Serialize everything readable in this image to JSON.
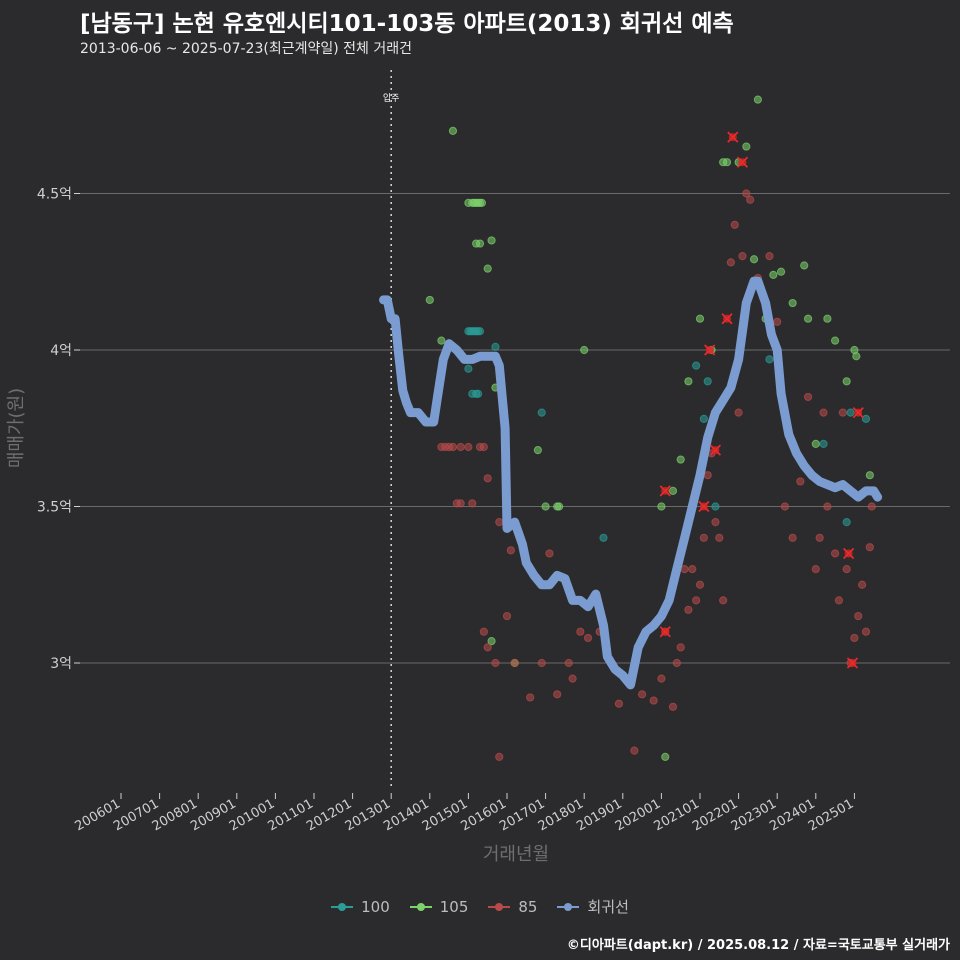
{
  "title": "[남동구] 논현 유호엔시티101-103동 아파트(2013) 회귀선 예측",
  "subtitle": "2013-06-06 ~ 2025-07-23(최근계약일) 전체 거래건",
  "credit": "©디아파트(dapt.kr) / 2025.08.12 / 자료=국토교통부 실거래가",
  "chart_data": {
    "type": "scatter",
    "xlabel": "거래년월",
    "ylabel": "매매가(원)",
    "x_ticks": [
      "200601",
      "200701",
      "200801",
      "200901",
      "201001",
      "201101",
      "201201",
      "201301",
      "201401",
      "201501",
      "201601",
      "201701",
      "201801",
      "201901",
      "202001",
      "202101",
      "202201",
      "202301",
      "202401",
      "202501"
    ],
    "y_ticks": [
      {
        "value": 3.0,
        "label": "3억"
      },
      {
        "value": 3.5,
        "label": "3.5억"
      },
      {
        "value": 4.0,
        "label": "4억"
      },
      {
        "value": 4.5,
        "label": "4.5억"
      }
    ],
    "ylim": [
      2.6,
      4.85
    ],
    "xlim": [
      2006.0,
      2025.7
    ],
    "annotation": {
      "x": 2013.0,
      "label": "입주"
    },
    "colors": {
      "100": "#2a9d96",
      "105": "#7cd16b",
      "85": "#b84a4a",
      "회귀선": "#7b9cd0"
    },
    "series": [
      {
        "name": "100",
        "points": [
          [
            2015.0,
            4.06
          ],
          [
            2015.05,
            4.06
          ],
          [
            2015.1,
            4.06
          ],
          [
            2015.15,
            4.06
          ],
          [
            2015.2,
            4.06
          ],
          [
            2015.25,
            4.06
          ],
          [
            2015.3,
            4.06
          ],
          [
            2015.0,
            3.94
          ],
          [
            2015.1,
            3.86
          ],
          [
            2015.2,
            3.86
          ],
          [
            2015.25,
            3.86
          ],
          [
            2015.7,
            4.01
          ],
          [
            2016.9,
            3.8
          ],
          [
            2018.5,
            3.4
          ],
          [
            2020.9,
            3.95
          ],
          [
            2021.1,
            3.78
          ],
          [
            2021.2,
            3.9
          ],
          [
            2021.4,
            3.5
          ],
          [
            2022.8,
            3.97
          ],
          [
            2024.2,
            3.7
          ],
          [
            2024.8,
            3.45
          ],
          [
            2024.9,
            3.8
          ],
          [
            2025.3,
            3.78
          ]
        ]
      },
      {
        "name": "105",
        "points": [
          [
            2015.0,
            4.47
          ],
          [
            2015.1,
            4.47
          ],
          [
            2015.15,
            4.47
          ],
          [
            2015.2,
            4.47
          ],
          [
            2015.25,
            4.47
          ],
          [
            2015.3,
            4.47
          ],
          [
            2015.35,
            4.47
          ],
          [
            2014.6,
            4.7
          ],
          [
            2014.0,
            4.16
          ],
          [
            2014.3,
            4.03
          ],
          [
            2015.2,
            4.34
          ],
          [
            2015.3,
            4.34
          ],
          [
            2015.5,
            4.26
          ],
          [
            2015.6,
            4.35
          ],
          [
            2015.7,
            3.88
          ],
          [
            2015.6,
            3.07
          ],
          [
            2016.2,
            3.0
          ],
          [
            2016.8,
            3.68
          ],
          [
            2017.0,
            3.5
          ],
          [
            2017.3,
            3.5
          ],
          [
            2017.35,
            3.5
          ],
          [
            2018.0,
            4.0
          ],
          [
            2020.0,
            3.5
          ],
          [
            2020.1,
            2.7
          ],
          [
            2020.3,
            3.55
          ],
          [
            2020.5,
            3.65
          ],
          [
            2020.7,
            3.9
          ],
          [
            2021.0,
            4.1
          ],
          [
            2021.3,
            4.0
          ],
          [
            2021.6,
            4.6
          ],
          [
            2021.7,
            4.6
          ],
          [
            2022.0,
            4.6
          ],
          [
            2022.2,
            4.65
          ],
          [
            2022.4,
            4.29
          ],
          [
            2022.5,
            4.8
          ],
          [
            2022.7,
            4.1
          ],
          [
            2022.9,
            4.24
          ],
          [
            2023.1,
            4.25
          ],
          [
            2023.4,
            4.15
          ],
          [
            2023.7,
            4.27
          ],
          [
            2023.8,
            4.1
          ],
          [
            2024.0,
            3.7
          ],
          [
            2024.3,
            4.1
          ],
          [
            2024.5,
            4.03
          ],
          [
            2024.8,
            3.9
          ],
          [
            2025.0,
            4.0
          ],
          [
            2025.05,
            3.98
          ],
          [
            2025.4,
            3.6
          ]
        ]
      },
      {
        "name": "85",
        "points": [
          [
            2014.3,
            3.69
          ],
          [
            2014.4,
            3.69
          ],
          [
            2014.5,
            3.69
          ],
          [
            2014.6,
            3.69
          ],
          [
            2014.8,
            3.69
          ],
          [
            2015.0,
            3.69
          ],
          [
            2014.7,
            3.51
          ],
          [
            2014.8,
            3.51
          ],
          [
            2015.1,
            3.51
          ],
          [
            2015.3,
            3.69
          ],
          [
            2015.4,
            3.69
          ],
          [
            2015.5,
            3.59
          ],
          [
            2015.8,
            3.45
          ],
          [
            2016.0,
            3.44
          ],
          [
            2016.1,
            3.36
          ],
          [
            2015.4,
            3.1
          ],
          [
            2015.5,
            3.05
          ],
          [
            2015.7,
            3.0
          ],
          [
            2015.8,
            2.7
          ],
          [
            2016.0,
            3.15
          ],
          [
            2016.2,
            3.0
          ],
          [
            2016.6,
            2.89
          ],
          [
            2016.9,
            3.0
          ],
          [
            2017.1,
            3.35
          ],
          [
            2017.3,
            2.9
          ],
          [
            2017.6,
            3.0
          ],
          [
            2017.7,
            2.95
          ],
          [
            2017.9,
            3.1
          ],
          [
            2018.1,
            3.08
          ],
          [
            2018.4,
            3.1
          ],
          [
            2018.9,
            2.87
          ],
          [
            2019.3,
            2.72
          ],
          [
            2019.5,
            2.9
          ],
          [
            2019.8,
            2.88
          ],
          [
            2020.0,
            2.95
          ],
          [
            2020.1,
            3.1
          ],
          [
            2020.2,
            3.2
          ],
          [
            2020.3,
            2.86
          ],
          [
            2020.4,
            3.0
          ],
          [
            2020.5,
            3.05
          ],
          [
            2020.6,
            3.3
          ],
          [
            2020.7,
            3.17
          ],
          [
            2020.8,
            3.3
          ],
          [
            2020.9,
            3.2
          ],
          [
            2021.0,
            3.25
          ],
          [
            2021.1,
            3.4
          ],
          [
            2021.2,
            3.6
          ],
          [
            2021.3,
            3.67
          ],
          [
            2021.4,
            3.45
          ],
          [
            2021.5,
            3.4
          ],
          [
            2021.6,
            3.2
          ],
          [
            2021.8,
            4.28
          ],
          [
            2021.9,
            4.4
          ],
          [
            2022.0,
            3.8
          ],
          [
            2022.1,
            4.3
          ],
          [
            2022.2,
            4.5
          ],
          [
            2022.3,
            4.48
          ],
          [
            2022.5,
            4.23
          ],
          [
            2022.8,
            4.3
          ],
          [
            2023.0,
            4.09
          ],
          [
            2023.2,
            3.5
          ],
          [
            2023.4,
            3.4
          ],
          [
            2023.6,
            3.58
          ],
          [
            2023.8,
            3.85
          ],
          [
            2024.0,
            3.3
          ],
          [
            2024.1,
            3.4
          ],
          [
            2024.2,
            3.8
          ],
          [
            2024.3,
            3.5
          ],
          [
            2024.5,
            3.35
          ],
          [
            2024.6,
            3.2
          ],
          [
            2024.7,
            3.8
          ],
          [
            2024.8,
            3.3
          ],
          [
            2024.9,
            3.0
          ],
          [
            2025.0,
            3.08
          ],
          [
            2025.1,
            3.15
          ],
          [
            2025.2,
            3.25
          ],
          [
            2025.3,
            3.1
          ],
          [
            2025.4,
            3.37
          ],
          [
            2025.45,
            3.5
          ]
        ]
      },
      {
        "name": "회귀선",
        "points": [
          [
            2012.8,
            4.16
          ],
          [
            2012.9,
            4.16
          ],
          [
            2013.0,
            4.1
          ],
          [
            2013.1,
            4.1
          ],
          [
            2013.2,
            3.98
          ],
          [
            2013.3,
            3.87
          ],
          [
            2013.4,
            3.83
          ],
          [
            2013.5,
            3.8
          ],
          [
            2013.7,
            3.8
          ],
          [
            2013.9,
            3.77
          ],
          [
            2014.1,
            3.77
          ],
          [
            2014.2,
            3.85
          ],
          [
            2014.35,
            3.97
          ],
          [
            2014.5,
            4.02
          ],
          [
            2014.7,
            4.0
          ],
          [
            2014.9,
            3.97
          ],
          [
            2015.1,
            3.97
          ],
          [
            2015.3,
            3.98
          ],
          [
            2015.5,
            3.98
          ],
          [
            2015.7,
            3.98
          ],
          [
            2015.8,
            3.95
          ],
          [
            2015.95,
            3.75
          ],
          [
            2016.0,
            3.43
          ],
          [
            2016.2,
            3.45
          ],
          [
            2016.4,
            3.38
          ],
          [
            2016.5,
            3.32
          ],
          [
            2016.7,
            3.28
          ],
          [
            2016.9,
            3.25
          ],
          [
            2017.1,
            3.25
          ],
          [
            2017.3,
            3.28
          ],
          [
            2017.5,
            3.27
          ],
          [
            2017.7,
            3.2
          ],
          [
            2017.9,
            3.2
          ],
          [
            2018.1,
            3.18
          ],
          [
            2018.3,
            3.22
          ],
          [
            2018.5,
            3.12
          ],
          [
            2018.6,
            3.02
          ],
          [
            2018.8,
            2.98
          ],
          [
            2019.0,
            2.96
          ],
          [
            2019.2,
            2.93
          ],
          [
            2019.4,
            3.05
          ],
          [
            2019.6,
            3.1
          ],
          [
            2019.8,
            3.12
          ],
          [
            2020.0,
            3.15
          ],
          [
            2020.2,
            3.2
          ],
          [
            2020.4,
            3.3
          ],
          [
            2020.6,
            3.4
          ],
          [
            2020.8,
            3.5
          ],
          [
            2021.0,
            3.6
          ],
          [
            2021.2,
            3.72
          ],
          [
            2021.4,
            3.8
          ],
          [
            2021.6,
            3.84
          ],
          [
            2021.8,
            3.88
          ],
          [
            2022.0,
            3.97
          ],
          [
            2022.2,
            4.15
          ],
          [
            2022.4,
            4.22
          ],
          [
            2022.5,
            4.22
          ],
          [
            2022.7,
            4.15
          ],
          [
            2022.85,
            4.05
          ],
          [
            2023.0,
            4.0
          ],
          [
            2023.1,
            3.86
          ],
          [
            2023.3,
            3.73
          ],
          [
            2023.5,
            3.67
          ],
          [
            2023.7,
            3.63
          ],
          [
            2023.9,
            3.6
          ],
          [
            2024.1,
            3.58
          ],
          [
            2024.3,
            3.57
          ],
          [
            2024.5,
            3.56
          ],
          [
            2024.7,
            3.57
          ],
          [
            2024.9,
            3.55
          ],
          [
            2025.1,
            3.53
          ],
          [
            2025.3,
            3.55
          ],
          [
            2025.5,
            3.55
          ],
          [
            2025.6,
            3.53
          ]
        ]
      }
    ],
    "highlighted": [
      [
        2020.1,
        3.55
      ],
      [
        2020.1,
        3.1
      ],
      [
        2021.25,
        4.0
      ],
      [
        2021.4,
        3.68
      ],
      [
        2021.1,
        3.5
      ],
      [
        2021.7,
        4.1
      ],
      [
        2021.85,
        4.68
      ],
      [
        2022.1,
        4.6
      ],
      [
        2024.85,
        3.35
      ],
      [
        2024.95,
        3.0
      ],
      [
        2025.1,
        3.8
      ]
    ]
  }
}
